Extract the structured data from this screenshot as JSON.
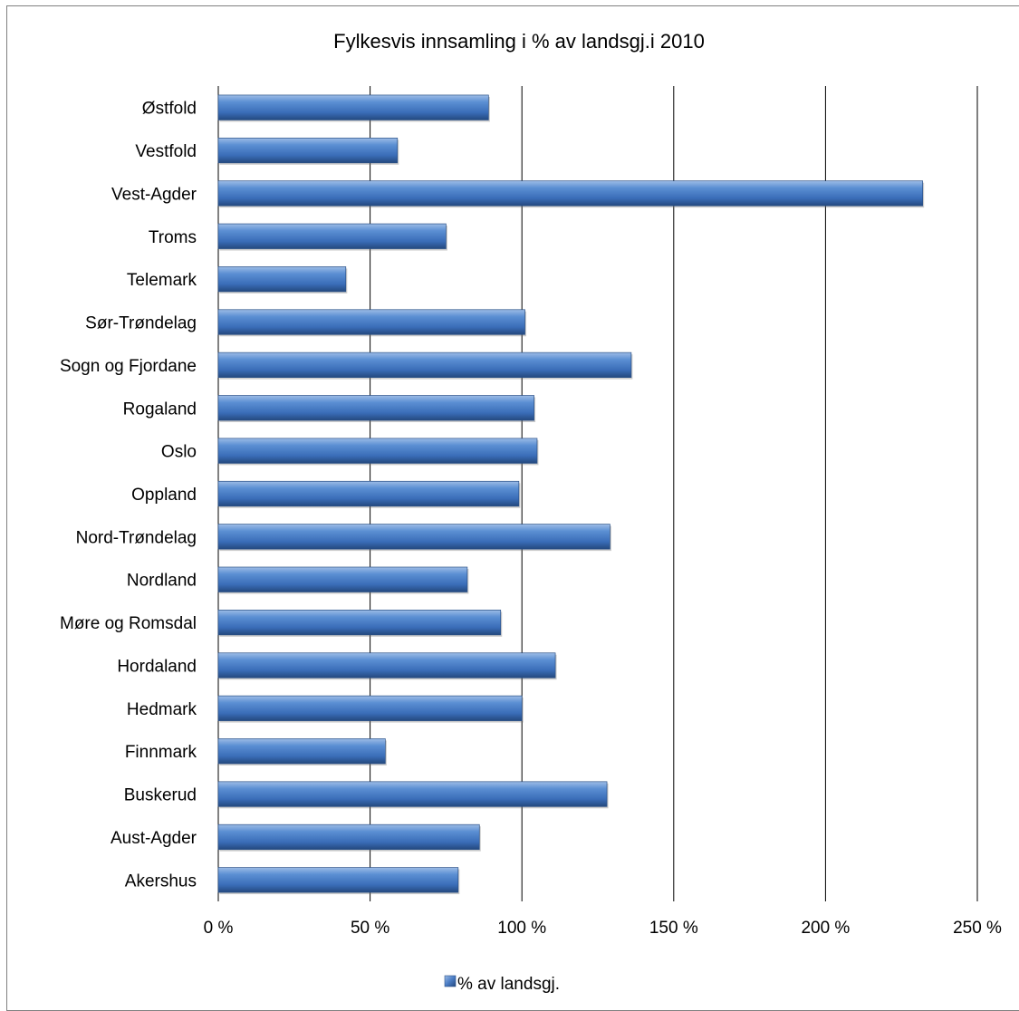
{
  "chart_data": {
    "type": "bar",
    "orientation": "horizontal",
    "title": "Fylkesvis innsamling i % av landsgj.i 2010",
    "xlabel": "",
    "ylabel": "",
    "xlim": [
      0,
      250
    ],
    "x_ticks": [
      0,
      50,
      100,
      150,
      200,
      250
    ],
    "x_tick_labels": [
      "0 %",
      "50 %",
      "100 %",
      "150 %",
      "200 %",
      "250 %"
    ],
    "grid": "vertical major gridlines",
    "legend_position": "bottom",
    "bar_color": "#4F81BD",
    "categories": [
      "Østfold",
      "Vestfold",
      "Vest-Agder",
      "Troms",
      "Telemark",
      "Sør-Trøndelag",
      "Sogn og Fjordane",
      "Rogaland",
      "Oslo",
      "Oppland",
      "Nord-Trøndelag",
      "Nordland",
      "Møre og Romsdal",
      "Hordaland",
      "Hedmark",
      "Finnmark",
      "Buskerud",
      "Aust-Agder",
      "Akershus"
    ],
    "series": [
      {
        "name": "% av landsgj.",
        "values": [
          89,
          59,
          232,
          75,
          42,
          101,
          136,
          104,
          105,
          99,
          129,
          82,
          93,
          111,
          100,
          55,
          128,
          86,
          79
        ]
      }
    ]
  }
}
